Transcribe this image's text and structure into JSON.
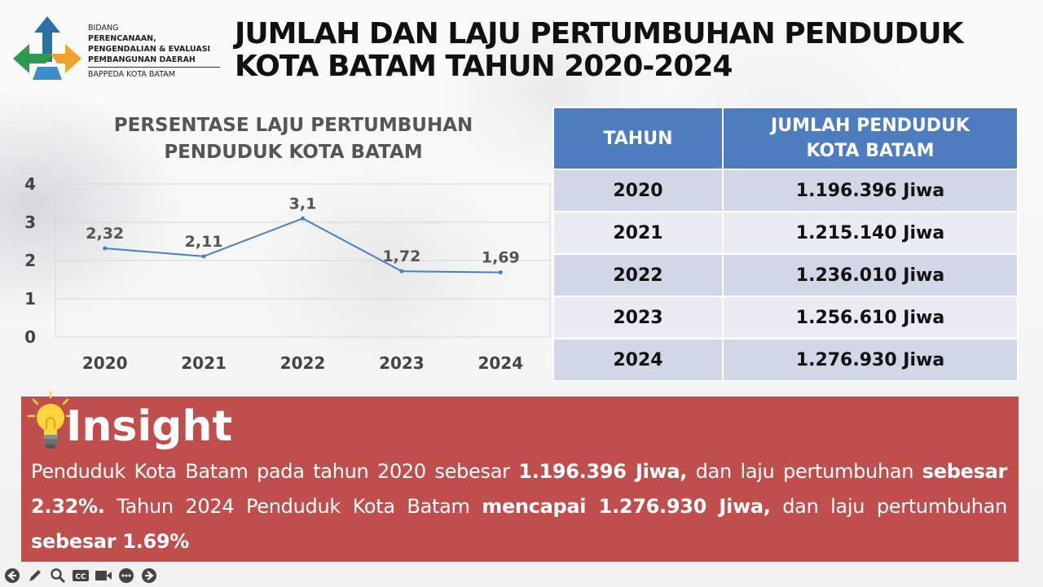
{
  "org": {
    "line1": "BIDANG",
    "line2": "PERENCANAAN,",
    "line3": "PENGENDALIAN & EVALUASI",
    "line4": "PEMBANGUNAN DAERAH",
    "line5": "BAPPEDA KOTA BATAM"
  },
  "title": {
    "line1": "JUMLAH DAN LAJU PERTUMBUHAN PENDUDUK",
    "line2": "KOTA BATAM TAHUN 2020-2024"
  },
  "chart_data": {
    "type": "line",
    "title_line1": "PERSENTASE LAJU PERTUMBUHAN",
    "title_line2": "PENDUDUK KOTA BATAM",
    "categories": [
      "2020",
      "2021",
      "2022",
      "2023",
      "2024"
    ],
    "series": [
      {
        "values": [
          2.32,
          2.11,
          3.1,
          1.72,
          1.69
        ],
        "labels": [
          "2,32",
          "2,11",
          "3,1",
          "1,72",
          "1,69"
        ]
      }
    ],
    "yticks": [
      "0",
      "1",
      "2",
      "3",
      "4"
    ],
    "ylim": [
      0,
      4
    ],
    "grid": true,
    "xlabel": "",
    "ylabel": "",
    "color": "#4a7fc1"
  },
  "table": {
    "header_year": "TAHUN",
    "header_pop_line1": "JUMLAH PENDUDUK",
    "header_pop_line2": "KOTA BATAM",
    "rows": [
      {
        "year": "2020",
        "pop": "1.196.396 Jiwa"
      },
      {
        "year": "2021",
        "pop": "1.215.140 Jiwa"
      },
      {
        "year": "2022",
        "pop": "1.236.010 Jiwa"
      },
      {
        "year": "2023",
        "pop": "1.256.610 Jiwa"
      },
      {
        "year": "2024",
        "pop": "1.276.930 Jiwa"
      }
    ]
  },
  "insight": {
    "heading": "Insight",
    "p1": "Penduduk Kota Batam pada tahun 2020 sebesar ",
    "b1": "1.196.396 Jiwa,",
    "p2": " dan laju pertumbuhan ",
    "b2": "sebesar 2.32%.",
    "p3": " Tahun 2024   Penduduk Kota Batam ",
    "b3": "mencapai  1.276.930 Jiwa,",
    "p4": " dan laju pertumbuhan ",
    "b4": "sebesar 1.69%"
  },
  "colors": {
    "header_blue": "#4e7dbf",
    "insight_red": "#bf4e4c",
    "row_dark": "#d1d7e6",
    "row_light": "#e9ecf3"
  },
  "toolbar": {
    "icons": [
      "prev-icon",
      "pen-icon",
      "zoom-icon",
      "captions-icon",
      "video-icon",
      "more-icon",
      "next-icon"
    ]
  }
}
